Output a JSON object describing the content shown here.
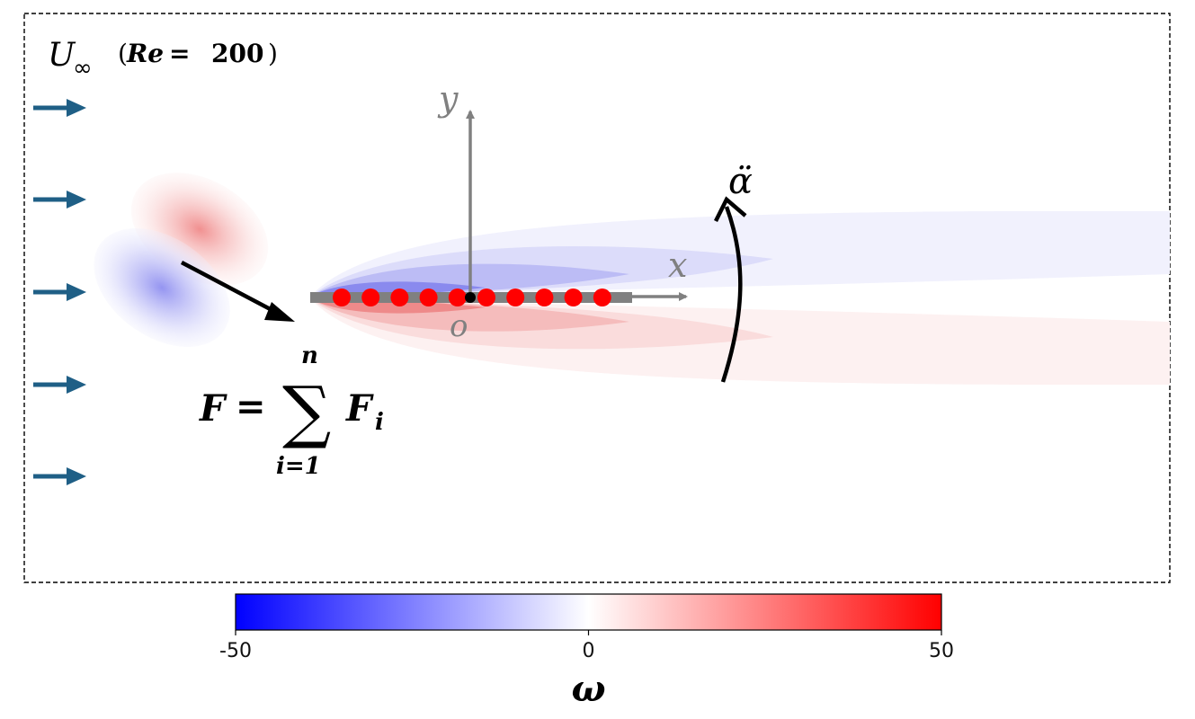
{
  "freestream": {
    "symbol": "U",
    "subscript": "∞",
    "reynolds_label": "Re",
    "reynolds_value": "200",
    "arrow_color": "#1f5f86",
    "arrow_count": 5
  },
  "axes": {
    "x_label": "x",
    "y_label": "y",
    "origin_label": "o",
    "color": "#808080"
  },
  "angular_acceleration": {
    "symbol": "α̈"
  },
  "force_equation": {
    "lhs": "F",
    "equals": "=",
    "sum_symbol": "∑",
    "upper_limit": "n",
    "lower_limit": "i=1",
    "term": "F",
    "term_subscript": "i"
  },
  "plate": {
    "color": "#808080",
    "marker_color": "#ff0000",
    "marker_count": 10,
    "pivot_color": "#000000"
  },
  "colorbar": {
    "label": "ω",
    "ticks": [
      "-50",
      "0",
      "50"
    ],
    "min": -50,
    "max": 50,
    "colors": [
      "#0000ff",
      "#ffffff",
      "#ff0000"
    ]
  }
}
